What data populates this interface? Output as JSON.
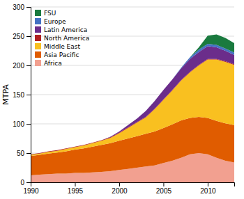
{
  "chart_data": {
    "type": "area",
    "stacked": true,
    "ylabel": "MTPA",
    "x": [
      1990,
      1991,
      1992,
      1993,
      1994,
      1995,
      1996,
      1997,
      1998,
      1999,
      2000,
      2001,
      2002,
      2003,
      2004,
      2005,
      2006,
      2007,
      2008,
      2009,
      2010,
      2011,
      2012,
      2013
    ],
    "series": [
      {
        "name": "Africa",
        "color": "#f2a090",
        "values": [
          12,
          13,
          14,
          15,
          15,
          16,
          16,
          17,
          18,
          19,
          21,
          23,
          25,
          27,
          29,
          33,
          37,
          42,
          48,
          50,
          48,
          42,
          37,
          34
        ]
      },
      {
        "name": "Asia Pacific",
        "color": "#e05c00",
        "values": [
          33,
          34,
          35,
          36,
          38,
          40,
          42,
          44,
          46,
          48,
          50,
          52,
          54,
          56,
          58,
          60,
          62,
          64,
          62,
          62,
          62,
          63,
          64,
          64
        ]
      },
      {
        "name": "Middle East",
        "color": "#f9c020",
        "values": [
          2,
          2,
          3,
          3,
          4,
          4,
          5,
          6,
          7,
          9,
          13,
          18,
          23,
          28,
          38,
          48,
          58,
          68,
          78,
          88,
          100,
          105,
          105,
          103
        ]
      },
      {
        "name": "North America",
        "color": "#b02020",
        "values": [
          1,
          1,
          1,
          1,
          1,
          1,
          1,
          1,
          1,
          1,
          1,
          1,
          1,
          1,
          1,
          1,
          1,
          1,
          1,
          1,
          1,
          1,
          1,
          1
        ]
      },
      {
        "name": "Latin America",
        "color": "#6b2d8b",
        "values": [
          0,
          0,
          0,
          0,
          0,
          0,
          0,
          0,
          0,
          1,
          2,
          4,
          6,
          10,
          13,
          16,
          18,
          20,
          22,
          22,
          22,
          20,
          18,
          16
        ]
      },
      {
        "name": "Europe",
        "color": "#4472c4",
        "values": [
          0,
          0,
          0,
          0,
          0,
          0,
          0,
          0,
          0,
          0,
          0,
          0,
          0,
          0,
          0,
          0,
          0,
          1,
          3,
          4,
          4,
          4,
          4,
          4
        ]
      },
      {
        "name": "FSU",
        "color": "#1a7a3f",
        "values": [
          0,
          0,
          0,
          0,
          0,
          0,
          0,
          0,
          0,
          0,
          0,
          0,
          0,
          0,
          0,
          0,
          0,
          0,
          0,
          4,
          14,
          18,
          18,
          16
        ]
      }
    ],
    "xlim": [
      1990,
      2013
    ],
    "xticks": [
      1990,
      1995,
      2000,
      2005,
      2010
    ],
    "ylim": [
      0,
      300
    ],
    "yticks": [
      0,
      50,
      100,
      150,
      200,
      250,
      300
    ],
    "grid": true,
    "legend": "top-left"
  }
}
